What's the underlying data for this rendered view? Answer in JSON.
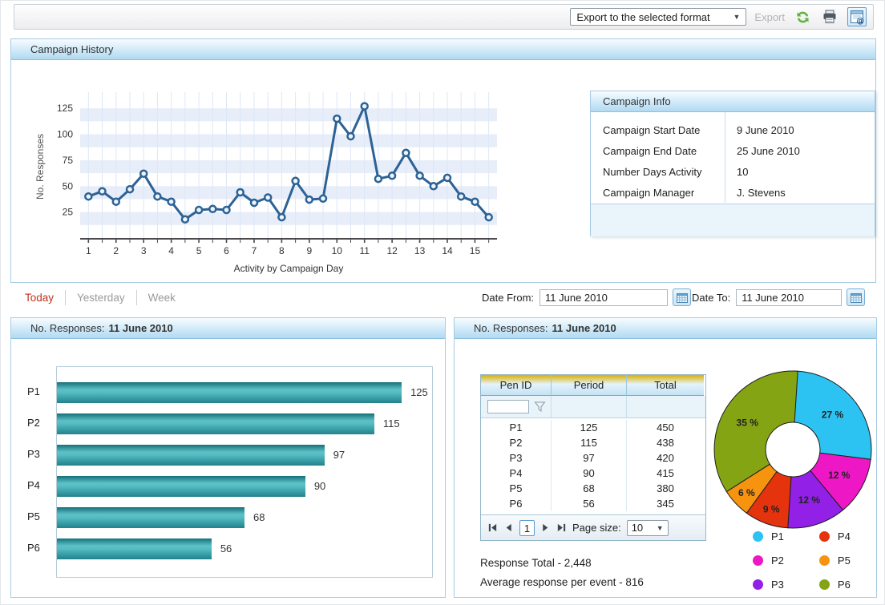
{
  "toolbar": {
    "export_format_value": "Export to the selected format",
    "export_label": "Export"
  },
  "campaign_history": {
    "title": "Campaign History",
    "info_title": "Campaign Info",
    "info_rows": [
      {
        "label": "Campaign Start Date",
        "value": "9 June 2010"
      },
      {
        "label": "Campaign End Date",
        "value": "25 June 2010"
      },
      {
        "label": "Number Days Activity",
        "value": "10"
      },
      {
        "label": "Campaign Manager",
        "value": "J. Stevens"
      }
    ]
  },
  "filters": {
    "today": "Today",
    "yesterday": "Yesterday",
    "week": "Week",
    "date_from_label": "Date From:",
    "date_from_value": "11 June 2010",
    "date_to_label": "Date To:",
    "date_to_value": "11 June 2010"
  },
  "bar_panel": {
    "title_prefix": "No. Responses:",
    "title_date": "11 June 2010"
  },
  "detail_panel": {
    "title_prefix": "No. Responses:",
    "title_date": "11 June 2010",
    "pager": {
      "page": "1",
      "page_size_label": "Page size:",
      "page_size_value": "10"
    },
    "response_total": "Response Total - 2,448",
    "average_response": "Average response per event - 816"
  },
  "chart_data": [
    {
      "id": "campaign-line",
      "type": "line",
      "xlabel": "Activity by Campaign Day",
      "ylabel": "No. Responses",
      "x": [
        1,
        1.5,
        2,
        2.5,
        3,
        3.5,
        4,
        4.5,
        5,
        5.5,
        6,
        6.5,
        7,
        7.5,
        8,
        8.5,
        9,
        9.5,
        10,
        10.5,
        11,
        11.5,
        12,
        12.5,
        13,
        13.5,
        14,
        14.5,
        15,
        15.5
      ],
      "values": [
        40,
        45,
        35,
        47,
        62,
        40,
        35,
        18,
        27,
        28,
        27,
        44,
        34,
        39,
        20,
        55,
        37,
        38,
        115,
        98,
        127,
        57,
        60,
        82,
        60,
        50,
        58,
        40,
        35,
        20
      ],
      "yticks": [
        25,
        50,
        75,
        100,
        125
      ],
      "xticks": [
        1,
        2,
        3,
        4,
        5,
        6,
        7,
        8,
        9,
        10,
        11,
        12,
        13,
        14,
        15
      ],
      "ylim": [
        0,
        137.5
      ],
      "line_color": "#2c6295",
      "band_color": "#e7edf9",
      "grid_color": "#dde7f7"
    },
    {
      "id": "responses-bar",
      "type": "bar",
      "orientation": "horizontal",
      "categories": [
        "P1",
        "P2",
        "P3",
        "P4",
        "P5",
        "P6"
      ],
      "values": [
        125,
        115,
        97,
        90,
        68,
        56
      ],
      "xlim": [
        0,
        136
      ],
      "bar_color": "#3aa2ab"
    },
    {
      "id": "responses-table",
      "type": "table",
      "columns": [
        "Pen ID",
        "Period",
        "Total"
      ],
      "rows": [
        [
          "P1",
          "125",
          "450"
        ],
        [
          "P2",
          "115",
          "438"
        ],
        [
          "P3",
          "97",
          "420"
        ],
        [
          "P4",
          "90",
          "415"
        ],
        [
          "P5",
          "68",
          "380"
        ],
        [
          "P6",
          "56",
          "345"
        ]
      ]
    },
    {
      "id": "responses-donut",
      "type": "pie",
      "labels": [
        "P1",
        "P2",
        "P3",
        "P4",
        "P5",
        "P6"
      ],
      "values": [
        27,
        12,
        12,
        9,
        6,
        35
      ],
      "value_labels": [
        "27 %",
        "12 %",
        "12 %",
        "9 %",
        "6 %",
        "35 %"
      ],
      "colors": [
        "#2cc3f2",
        "#ee17c6",
        "#9220e6",
        "#e5330e",
        "#f6930f",
        "#85a413"
      ],
      "legend_position": "bottom-right"
    }
  ]
}
